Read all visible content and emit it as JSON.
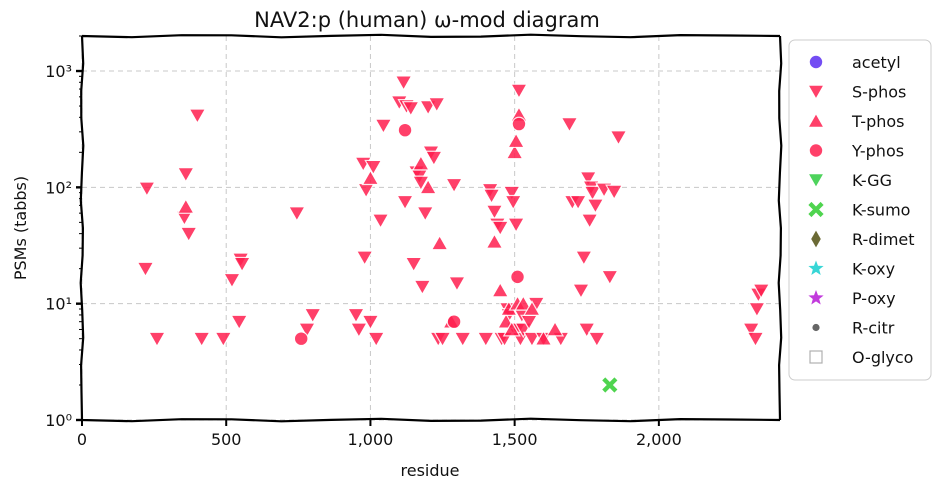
{
  "chart_data": {
    "type": "scatter",
    "title": "NAV2:p (human) ω-mod diagram",
    "xlabel": "residue",
    "ylabel": "PSMs (tabbs)",
    "x_scale": "linear",
    "y_scale": "log",
    "xlim": [
      0,
      2420
    ],
    "ylim": [
      1,
      2000
    ],
    "x_ticks": [
      0,
      500,
      1000,
      1500,
      2000
    ],
    "x_tick_labels": [
      "0",
      "500",
      "1,000",
      "1,500",
      "2,000"
    ],
    "y_ticks": [
      1,
      10,
      100,
      1000
    ],
    "y_tick_labels": [
      "10⁰",
      "10¹",
      "10²",
      "10³"
    ],
    "grid": true,
    "legend_position": "outside-right",
    "series": [
      {
        "name": "acetyl",
        "marker": "circle",
        "color": "#5b2ff2",
        "points": []
      },
      {
        "name": "S-phos",
        "marker": "triangle-down",
        "color": "#ff1f4f",
        "points": [
          [
            225,
            98
          ],
          [
            220,
            20
          ],
          [
            260,
            5
          ],
          [
            355,
            55
          ],
          [
            360,
            130
          ],
          [
            370,
            40
          ],
          [
            400,
            415
          ],
          [
            415,
            5
          ],
          [
            490,
            5
          ],
          [
            520,
            16
          ],
          [
            545,
            7
          ],
          [
            550,
            24
          ],
          [
            555,
            22
          ],
          [
            745,
            60
          ],
          [
            780,
            6
          ],
          [
            800,
            8
          ],
          [
            950,
            8
          ],
          [
            960,
            6
          ],
          [
            975,
            160
          ],
          [
            980,
            25
          ],
          [
            985,
            95
          ],
          [
            1000,
            7
          ],
          [
            1010,
            150
          ],
          [
            1020,
            5
          ],
          [
            1035,
            52
          ],
          [
            1045,
            340
          ],
          [
            1100,
            540
          ],
          [
            1115,
            800
          ],
          [
            1120,
            75
          ],
          [
            1125,
            500
          ],
          [
            1140,
            480
          ],
          [
            1150,
            22
          ],
          [
            1160,
            135
          ],
          [
            1170,
            125
          ],
          [
            1175,
            110
          ],
          [
            1180,
            14
          ],
          [
            1190,
            60
          ],
          [
            1200,
            490
          ],
          [
            1210,
            200
          ],
          [
            1220,
            180
          ],
          [
            1230,
            520
          ],
          [
            1235,
            5
          ],
          [
            1250,
            5
          ],
          [
            1290,
            105
          ],
          [
            1300,
            15
          ],
          [
            1320,
            5
          ],
          [
            1400,
            5
          ],
          [
            1415,
            95
          ],
          [
            1420,
            85
          ],
          [
            1430,
            62
          ],
          [
            1440,
            48
          ],
          [
            1450,
            45
          ],
          [
            1455,
            5
          ],
          [
            1465,
            5
          ],
          [
            1475,
            9
          ],
          [
            1480,
            8
          ],
          [
            1490,
            90
          ],
          [
            1495,
            75
          ],
          [
            1500,
            6
          ],
          [
            1505,
            48
          ],
          [
            1510,
            6
          ],
          [
            1515,
            680
          ],
          [
            1520,
            5
          ],
          [
            1525,
            8
          ],
          [
            1530,
            6
          ],
          [
            1550,
            7
          ],
          [
            1560,
            5
          ],
          [
            1575,
            10
          ],
          [
            1600,
            5
          ],
          [
            1660,
            5
          ],
          [
            1690,
            350
          ],
          [
            1700,
            75
          ],
          [
            1720,
            75
          ],
          [
            1730,
            13
          ],
          [
            1740,
            25
          ],
          [
            1750,
            6
          ],
          [
            1755,
            120
          ],
          [
            1760,
            52
          ],
          [
            1765,
            100
          ],
          [
            1770,
            90
          ],
          [
            1780,
            70
          ],
          [
            1785,
            5
          ],
          [
            1810,
            96
          ],
          [
            1830,
            17
          ],
          [
            1845,
            92
          ],
          [
            1860,
            270
          ],
          [
            2320,
            6
          ],
          [
            2335,
            5
          ],
          [
            2340,
            9
          ],
          [
            2345,
            12
          ],
          [
            2355,
            13
          ]
        ]
      },
      {
        "name": "T-phos",
        "marker": "triangle-up",
        "color": "#ff1f4f",
        "points": [
          [
            360,
            68
          ],
          [
            1000,
            120
          ],
          [
            1175,
            160
          ],
          [
            1200,
            100
          ],
          [
            1240,
            33
          ],
          [
            1280,
            7
          ],
          [
            1430,
            34
          ],
          [
            1450,
            13
          ],
          [
            1470,
            7
          ],
          [
            1480,
            9
          ],
          [
            1490,
            6
          ],
          [
            1500,
            200
          ],
          [
            1505,
            250
          ],
          [
            1510,
            10
          ],
          [
            1515,
            420
          ],
          [
            1530,
            10
          ],
          [
            1560,
            9
          ],
          [
            1600,
            5
          ],
          [
            1640,
            6
          ]
        ]
      },
      {
        "name": "Y-phos",
        "marker": "circle",
        "color": "#ff1f4f",
        "points": [
          [
            760,
            5
          ],
          [
            1120,
            310
          ],
          [
            1290,
            7
          ],
          [
            1510,
            17
          ],
          [
            1515,
            350
          ]
        ]
      },
      {
        "name": "K-GG",
        "marker": "triangle-down",
        "color": "#2ecc40",
        "points": []
      },
      {
        "name": "K-sumo",
        "marker": "x-filled",
        "color": "#3ccf3c",
        "points": [
          [
            1830,
            2
          ]
        ]
      },
      {
        "name": "R-dimet",
        "marker": "diamond",
        "color": "#6b6a35",
        "points": []
      },
      {
        "name": "K-oxy",
        "marker": "star",
        "color": "#37d6d6",
        "points": []
      },
      {
        "name": "P-oxy",
        "marker": "star",
        "color": "#c23bdc",
        "points": []
      },
      {
        "name": "R-citr",
        "marker": "small-circle",
        "color": "#666666",
        "points": []
      },
      {
        "name": "O-glyco",
        "marker": "square-open",
        "color": "#b0b0b0",
        "points": []
      }
    ]
  }
}
